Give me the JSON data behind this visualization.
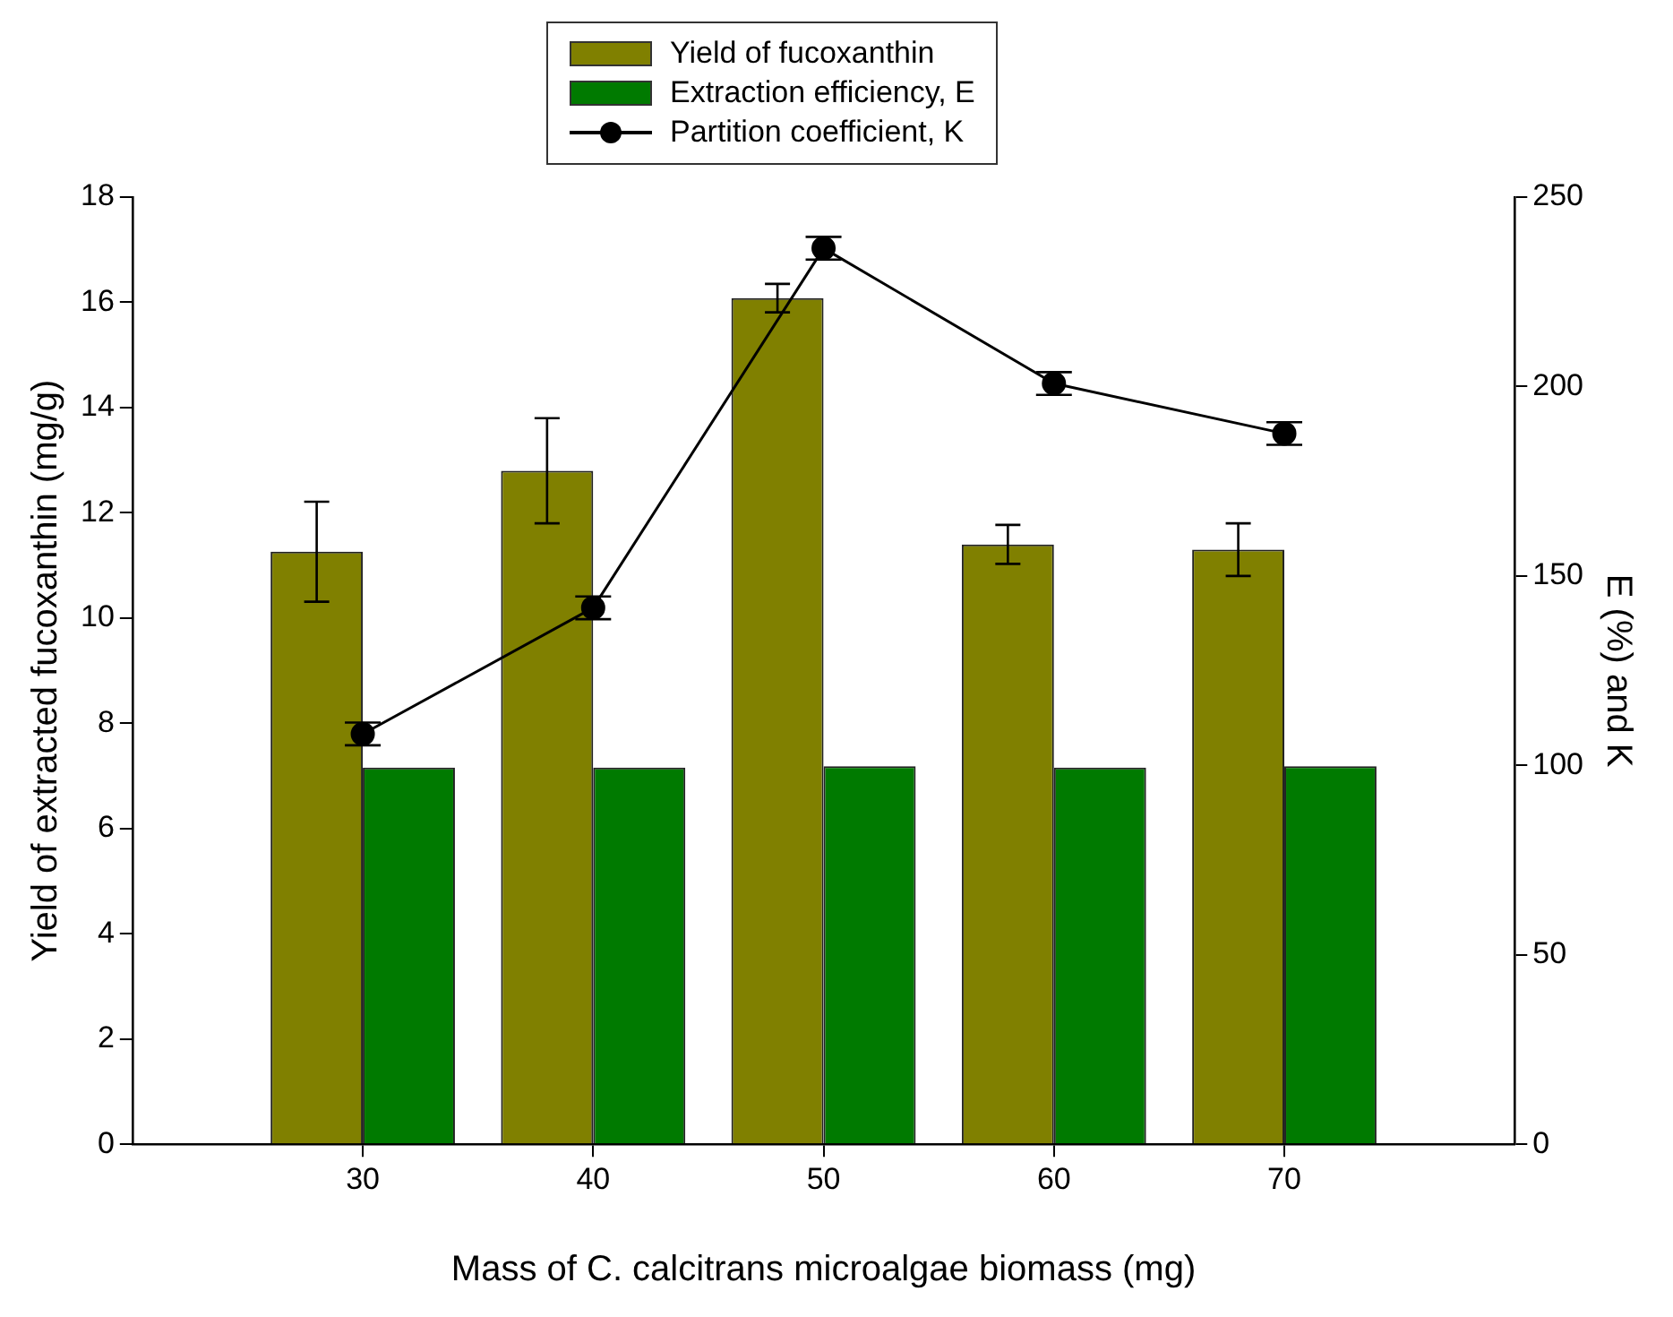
{
  "chart_data": {
    "type": "bar",
    "xlabel": "Mass of C. calcitrans microalgae biomass (mg)",
    "ylabel": "Yield of extracted fucoxanthin (mg/g)",
    "y2label": "E (%) and K",
    "x": [
      30,
      40,
      50,
      60,
      70
    ],
    "xlim": [
      20,
      80
    ],
    "xticks": [
      30,
      40,
      50,
      60,
      70
    ],
    "series": [
      {
        "name": "Yield of fucoxanthin",
        "color": "#808000",
        "values": [
          11.26,
          12.8,
          16.08,
          11.4,
          11.3
        ],
        "errors": [
          0.95,
          1.0,
          0.27,
          0.37,
          0.5
        ]
      },
      {
        "name": "Extraction efficiency, E",
        "axis": "y2",
        "color": "#007a00",
        "values": [
          99.4,
          99.4,
          99.8,
          99.4,
          99.8
        ]
      },
      {
        "name": "Partition coefficient, K",
        "type": "line",
        "axis": "y2",
        "color": "#000000",
        "values": [
          108.3,
          141.6,
          236.5,
          200.8,
          187.6
        ],
        "errors": [
          3,
          3,
          3,
          3,
          3
        ],
        "marker": "circle",
        "line_style": "solid"
      }
    ],
    "ylim": [
      0,
      18
    ],
    "yticks": [
      0,
      2,
      4,
      6,
      8,
      10,
      12,
      14,
      16,
      18
    ],
    "y2lim": [
      0,
      250
    ],
    "y2ticks": [
      0,
      50,
      100,
      150,
      200,
      250
    ],
    "grid": false,
    "legend": "top"
  }
}
